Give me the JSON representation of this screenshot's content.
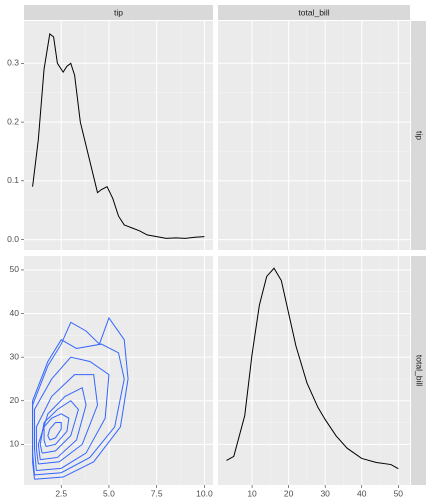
{
  "strips": {
    "columns": [
      "tip",
      "total_bill"
    ],
    "rows": [
      "tip",
      "total_bill"
    ]
  },
  "chart_data": [
    {
      "type": "line",
      "color": "#000000",
      "grid": true,
      "x": [
        1.0,
        1.3,
        1.6,
        1.9,
        2.1,
        2.3,
        2.6,
        2.8,
        3.0,
        3.2,
        3.5,
        3.8,
        4.1,
        4.4,
        4.6,
        4.9,
        5.2,
        5.5,
        5.8,
        6.2,
        6.6,
        7.0,
        7.5,
        8.0,
        8.5,
        9.0,
        9.5,
        10.0
      ],
      "values": [
        0.09,
        0.17,
        0.29,
        0.35,
        0.345,
        0.3,
        0.285,
        0.295,
        0.3,
        0.28,
        0.2,
        0.16,
        0.12,
        0.08,
        0.085,
        0.09,
        0.07,
        0.04,
        0.025,
        0.02,
        0.015,
        0.008,
        0.005,
        0.002,
        0.003,
        0.002,
        0.004,
        0.005
      ],
      "xlim": [
        0.55,
        10.45
      ],
      "ylim": [
        -0.0177,
        0.372
      ],
      "yticks": [
        {
          "value": 0,
          "label": "0.0"
        },
        0.1,
        0.2,
        0.3
      ]
    },
    {
      "type": "contour",
      "color": "#3366ff",
      "grid": true,
      "xlim": [
        0.55,
        10.45
      ],
      "ylim": [
        0.68,
        53.2
      ],
      "xticks": [
        2.5,
        {
          "value": 5,
          "label": "5.0"
        },
        7.5,
        {
          "value": 10,
          "label": "10.0"
        }
      ],
      "yticks": [
        10,
        20,
        30,
        40,
        50
      ],
      "series": [
        {
          "x": [
            1.9,
            2.2,
            2.5,
            2.5,
            2.2,
            1.9,
            1.8,
            1.9
          ],
          "values": [
            11,
            11.5,
            13.5,
            15,
            15,
            13.5,
            12,
            11
          ]
        },
        {
          "x": [
            1.7,
            2.2,
            2.8,
            2.9,
            2.5,
            2.0,
            1.6,
            1.6,
            1.7
          ],
          "values": [
            9.5,
            10,
            13,
            16,
            17,
            16,
            14,
            11,
            9.5
          ]
        },
        {
          "x": [
            1.5,
            2.2,
            3.0,
            3.4,
            3.0,
            2.3,
            1.6,
            1.4,
            1.5
          ],
          "values": [
            8,
            8.5,
            12,
            18,
            20,
            18,
            15,
            10,
            8
          ]
        },
        {
          "x": [
            1.4,
            2.3,
            3.3,
            3.8,
            3.6,
            2.7,
            1.8,
            1.3,
            1.4
          ],
          "values": [
            6.5,
            7,
            11,
            19,
            23,
            21,
            17,
            10,
            6.5
          ]
        },
        {
          "x": [
            1.3,
            2.4,
            3.6,
            4.4,
            4.2,
            3.2,
            2.0,
            1.2,
            1.2,
            1.3
          ],
          "values": [
            5.5,
            6,
            10,
            19,
            26,
            26,
            21,
            14,
            9,
            5.5
          ]
        },
        {
          "x": [
            1.2,
            2.5,
            3.8,
            4.8,
            5.0,
            4.0,
            3.0,
            2.0,
            1.1,
            1.1,
            1.2
          ],
          "values": [
            4,
            4.5,
            8,
            16,
            26,
            29,
            30,
            25,
            18,
            9,
            4
          ]
        },
        {
          "x": [
            1.1,
            2.5,
            4.0,
            5.3,
            5.8,
            5.5,
            4.6,
            3.3,
            2.5,
            1.8,
            1.0,
            1.0,
            1.1
          ],
          "values": [
            3,
            3.5,
            7,
            14,
            25,
            31,
            33,
            32,
            34,
            29,
            20,
            8,
            3
          ]
        },
        {
          "x": [
            1.1,
            2.6,
            4.2,
            5.6,
            6.0,
            5.8,
            5.0,
            4.5,
            3.8,
            3.0,
            2.5,
            1.8,
            1.0,
            1.0,
            1.1
          ],
          "values": [
            2,
            2.5,
            6,
            14,
            25,
            34,
            39,
            33,
            36,
            38,
            33,
            28,
            19,
            6,
            2
          ]
        }
      ]
    },
    {
      "type": "line",
      "color": "#000000",
      "grid": true,
      "x": [
        3,
        5,
        8,
        10,
        12,
        14,
        16,
        18,
        20,
        22,
        25,
        28,
        30,
        33,
        36,
        40,
        44,
        48,
        50
      ],
      "values": [
        0.004,
        0.005,
        0.015,
        0.03,
        0.042,
        0.049,
        0.051,
        0.048,
        0.04,
        0.032,
        0.023,
        0.017,
        0.014,
        0.01,
        0.007,
        0.0045,
        0.0035,
        0.003,
        0.002
      ],
      "xlim": [
        0.68,
        53.2
      ],
      "ylim": [
        -0.002,
        0.054
      ],
      "xticks": [
        10,
        20,
        30,
        40,
        50
      ]
    }
  ]
}
